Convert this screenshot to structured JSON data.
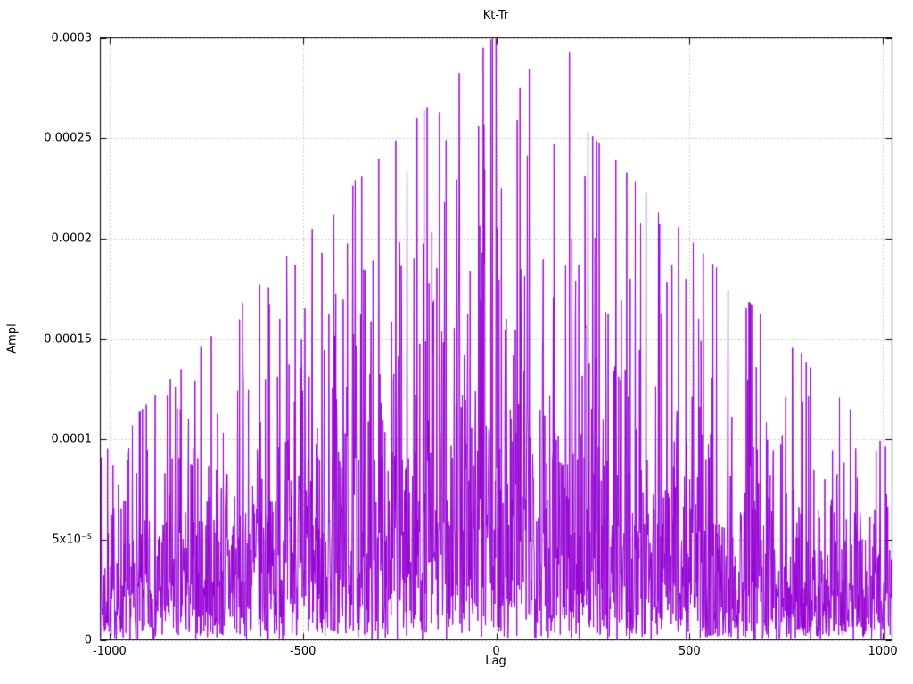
{
  "chart_data": {
    "type": "line",
    "title": "Kt-Tr",
    "xlabel": "Lag",
    "ylabel": "Ampl",
    "xlim": [
      -1024,
      1024
    ],
    "ylim": [
      0,
      0.0003
    ],
    "grid": true,
    "legend": "none",
    "line_color": "#9400d3",
    "grid_color": "#9a9a9a",
    "border_color": "#000000",
    "x_ticks": [
      {
        "value": -1000,
        "label": "-1000"
      },
      {
        "value": -500,
        "label": "-500"
      },
      {
        "value": 0,
        "label": "0"
      },
      {
        "value": 500,
        "label": "500"
      },
      {
        "value": 1000,
        "label": "1000"
      }
    ],
    "y_ticks": [
      {
        "value": 0,
        "label": "0"
      },
      {
        "value": 5e-05,
        "label": "5x10⁻⁵"
      },
      {
        "value": 0.0001,
        "label": "0.0001"
      },
      {
        "value": 0.00015,
        "label": "0.00015"
      },
      {
        "value": 0.0002,
        "label": "0.0002"
      },
      {
        "value": 0.00025,
        "label": "0.00025"
      },
      {
        "value": 0.0003,
        "label": "0.0003"
      }
    ],
    "series": [
      {
        "name": "Kt-Tr",
        "description": "Dense noise-like correlation magnitude; spiky signal whose envelope rises from the edges toward lag 0",
        "n_points": 2048,
        "seed": 7,
        "envelope": {
          "shape": "triangular",
          "center_scale": 7.8e-05,
          "edge_scale": 2.4e-05
        },
        "distribution": "exponential",
        "cap_factor": 3.87,
        "notable_peaks": [
          {
            "x": -830,
            "y": 0.000126
          },
          {
            "x": -655,
            "y": 0.000139
          },
          {
            "x": -560,
            "y": 0.00016
          },
          {
            "x": -520,
            "y": 0.000187
          },
          {
            "x": -420,
            "y": 0.000212
          },
          {
            "x": -365,
            "y": 0.000229
          },
          {
            "x": -250,
            "y": 0.000198
          },
          {
            "x": -130,
            "y": 0.000249
          },
          {
            "x": -95,
            "y": 0.000218
          },
          {
            "x": 0,
            "y": 0.000242
          },
          {
            "x": 62,
            "y": 0.000275
          },
          {
            "x": 150,
            "y": 0.000247
          },
          {
            "x": 190,
            "y": 0.000293
          },
          {
            "x": 230,
            "y": 0.000231
          },
          {
            "x": 310,
            "y": 0.000239
          },
          {
            "x": 420,
            "y": 0.000213
          },
          {
            "x": 455,
            "y": 0.000187
          },
          {
            "x": 530,
            "y": 0.000149
          },
          {
            "x": 600,
            "y": 0.000174
          },
          {
            "x": 790,
            "y": 0.000143
          }
        ]
      }
    ]
  }
}
